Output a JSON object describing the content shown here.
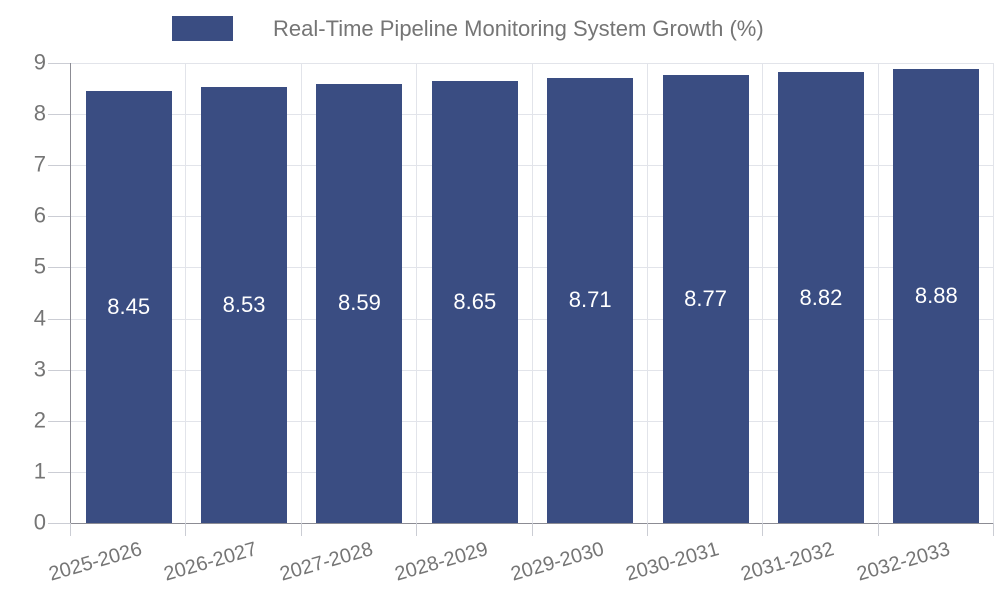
{
  "chart_data": {
    "type": "bar",
    "title": "Real-Time Pipeline Monitoring System Growth (%)",
    "legend": "Real-Time Pipeline Monitoring System Growth (%)",
    "legend_position": "top",
    "categories": [
      "2025-2026",
      "2026-2027",
      "2027-2028",
      "2028-2029",
      "2029-2030",
      "2030-2031",
      "2031-2032",
      "2032-2033"
    ],
    "values": [
      8.45,
      8.53,
      8.59,
      8.65,
      8.71,
      8.77,
      8.82,
      8.88
    ],
    "value_labels": [
      "8.45",
      "8.53",
      "8.59",
      "8.65",
      "8.71",
      "8.77",
      "8.82",
      "8.88"
    ],
    "xlabel": "",
    "ylabel": "",
    "ylim": [
      0,
      9
    ],
    "yticks": [
      0,
      1,
      2,
      3,
      4,
      5,
      6,
      7,
      8,
      9
    ],
    "grid": true,
    "colors": {
      "bar": "#3A4D82",
      "bar_label": "#ffffff",
      "axis_line": "#8C8C94",
      "grid_line": "#E2E4EA",
      "tick_line": "#CBCDD4",
      "axis_text": "#757575",
      "legend_text": "#757575",
      "background": "#ffffff"
    }
  }
}
